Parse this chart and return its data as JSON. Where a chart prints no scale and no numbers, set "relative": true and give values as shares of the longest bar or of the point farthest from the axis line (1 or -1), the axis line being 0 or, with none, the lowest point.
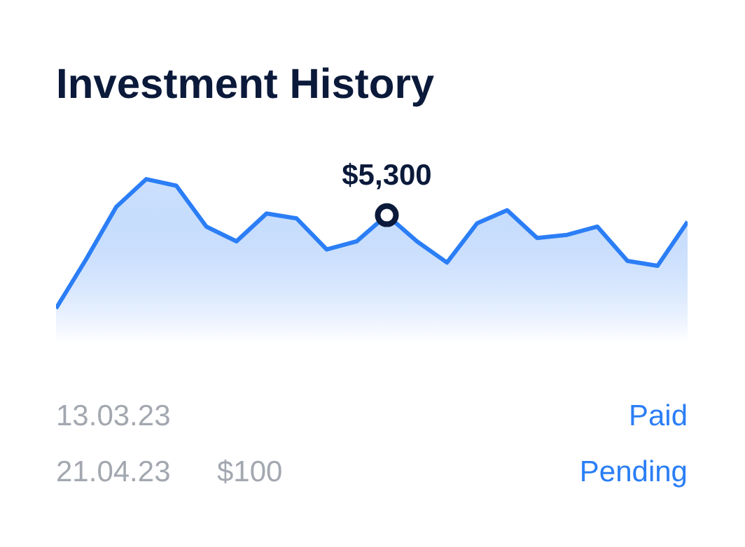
{
  "chart_data": {
    "type": "area",
    "title": "Investment History",
    "relative": true,
    "categories": [
      null,
      null,
      null,
      null,
      null,
      null,
      null,
      null,
      null,
      null,
      null,
      null,
      null,
      null,
      null,
      null,
      null,
      null,
      null,
      null,
      null,
      null
    ],
    "series": [
      {
        "color": "#2b7ef6",
        "values": [
          0.21,
          0.51,
          0.83,
          1,
          0.96,
          0.71,
          0.62,
          0.79,
          0.76,
          0.57,
          0.62,
          0.78,
          0.62,
          0.49,
          0.73,
          0.81,
          0.64,
          0.66,
          0.71,
          0.5,
          0.47,
          0.74
        ]
      }
    ],
    "annotations": [
      {
        "text": "$5,300",
        "y": 0.78
      },
      "13.03.23",
      "Paid",
      "21.04.23",
      "$100",
      "Pending"
    ]
  }
}
